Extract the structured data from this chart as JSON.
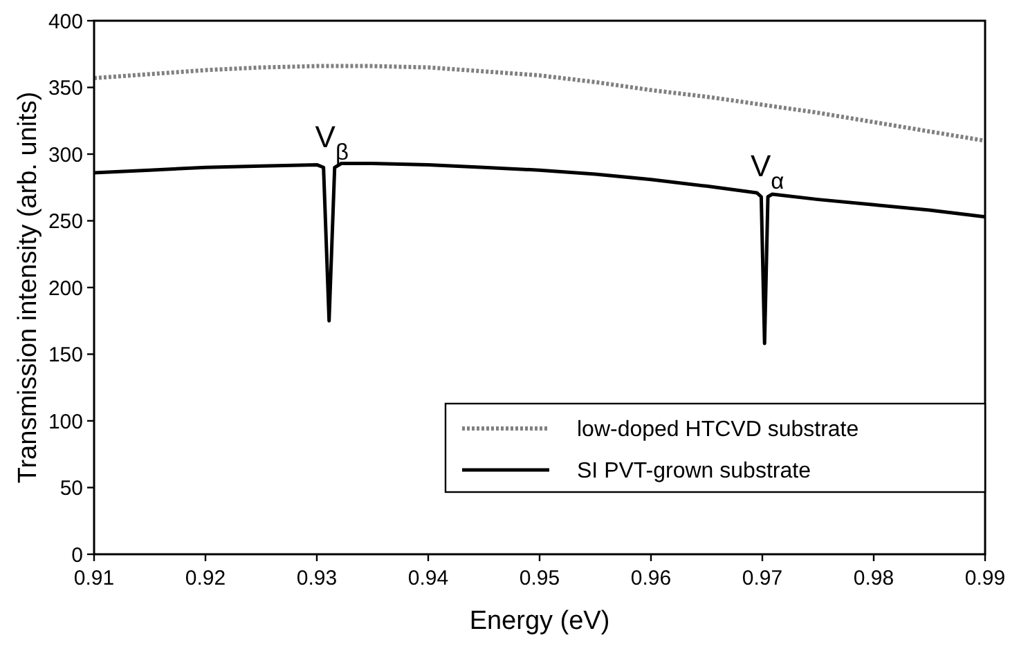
{
  "chart_data": {
    "type": "line",
    "xlabel": "Energy (eV)",
    "ylabel": "Transmission intensity (arb. units)",
    "xlim": [
      0.91,
      0.99
    ],
    "xticks": [
      {
        "value": 0.91,
        "label": "0.91"
      },
      {
        "value": 0.92,
        "label": "0.92"
      },
      {
        "value": 0.93,
        "label": "0.93"
      },
      {
        "value": 0.94,
        "label": "0.94"
      },
      {
        "value": 0.95,
        "label": "0.95"
      },
      {
        "value": 0.96,
        "label": "0.96"
      },
      {
        "value": 0.97,
        "label": "0.97"
      },
      {
        "value": 0.98,
        "label": "0.98"
      },
      {
        "value": 0.99,
        "label": "0.99"
      }
    ],
    "ylim": [
      0,
      400
    ],
    "yticks": [
      0,
      50,
      100,
      150,
      200,
      250,
      300,
      350,
      400
    ],
    "grid": false,
    "legend": "bottom right",
    "series": [
      {
        "name": "low-doped HTCVD substrate",
        "color": "#808080",
        "line_style": "dotted",
        "x": [
          0.91,
          0.915,
          0.92,
          0.925,
          0.93,
          0.935,
          0.94,
          0.945,
          0.95,
          0.955,
          0.96,
          0.965,
          0.97,
          0.975,
          0.98,
          0.985,
          0.99
        ],
        "values": [
          357,
          360,
          363,
          365,
          366,
          366,
          365,
          362,
          359,
          354,
          348,
          343,
          337,
          331,
          324,
          317,
          310
        ]
      },
      {
        "name": "SI PVT-grown substrate",
        "color": "#000000",
        "line_style": "solid",
        "x": [
          0.91,
          0.915,
          0.92,
          0.925,
          0.93,
          0.9306,
          0.9311,
          0.9316,
          0.9322,
          0.935,
          0.94,
          0.945,
          0.95,
          0.955,
          0.96,
          0.965,
          0.9695,
          0.9699,
          0.9702,
          0.9705,
          0.9709,
          0.975,
          0.98,
          0.985,
          0.99
        ],
        "values": [
          286,
          288,
          290,
          291,
          292,
          290,
          175,
          290,
          293,
          293,
          292,
          290,
          288,
          285,
          281,
          276,
          271,
          268,
          158,
          268,
          270,
          266,
          262,
          258,
          253
        ]
      }
    ],
    "annotations": [
      {
        "text": "V$_{β}$",
        "x": 0.9311,
        "y": 293
      },
      {
        "text": "V$_{α}$",
        "x": 0.9702,
        "y": 271
      }
    ]
  }
}
